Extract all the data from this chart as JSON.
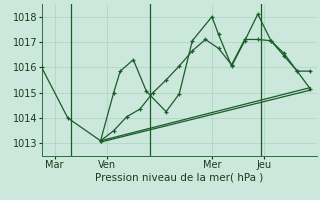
{
  "xlabel": "Pression niveau de la mer( hPa )",
  "bg_color": "#cce8dc",
  "line_color": "#1a5c28",
  "grid_color": "#a8d4bc",
  "ylim": [
    1012.5,
    1018.5
  ],
  "yticks": [
    1013,
    1014,
    1015,
    1016,
    1017,
    1018
  ],
  "day_labels": [
    "Mar",
    "Ven",
    "Mer",
    "Jeu"
  ],
  "day_positions": [
    2,
    10,
    26,
    34
  ],
  "xlim": [
    0,
    42
  ],
  "line1_x": [
    0,
    4,
    9,
    11,
    12,
    14,
    16,
    19,
    21,
    23,
    26,
    27,
    29,
    31,
    33,
    35,
    37,
    39,
    41
  ],
  "line1_y": [
    1016.0,
    1014.0,
    1013.1,
    1015.0,
    1015.85,
    1016.3,
    1015.05,
    1014.25,
    1014.95,
    1017.05,
    1018.0,
    1017.3,
    1016.05,
    1017.05,
    1018.1,
    1017.05,
    1016.55,
    1015.85,
    1015.85
  ],
  "line2_x": [
    9,
    11,
    13,
    15,
    17,
    19,
    21,
    23,
    25,
    27,
    29,
    31,
    33,
    35,
    37,
    39,
    41
  ],
  "line2_y": [
    1013.1,
    1013.5,
    1014.05,
    1014.35,
    1015.0,
    1015.5,
    1016.05,
    1016.65,
    1017.1,
    1016.75,
    1016.1,
    1017.1,
    1017.1,
    1017.05,
    1016.45,
    1015.85,
    1015.15
  ],
  "line3_x": [
    9,
    41
  ],
  "line3_y": [
    1013.1,
    1015.2
  ],
  "line4_x": [
    9,
    41
  ],
  "line4_y": [
    1013.05,
    1015.1
  ],
  "vline_x": [
    4.5,
    16.5,
    33.5
  ],
  "vline_color": "#1a5c28"
}
